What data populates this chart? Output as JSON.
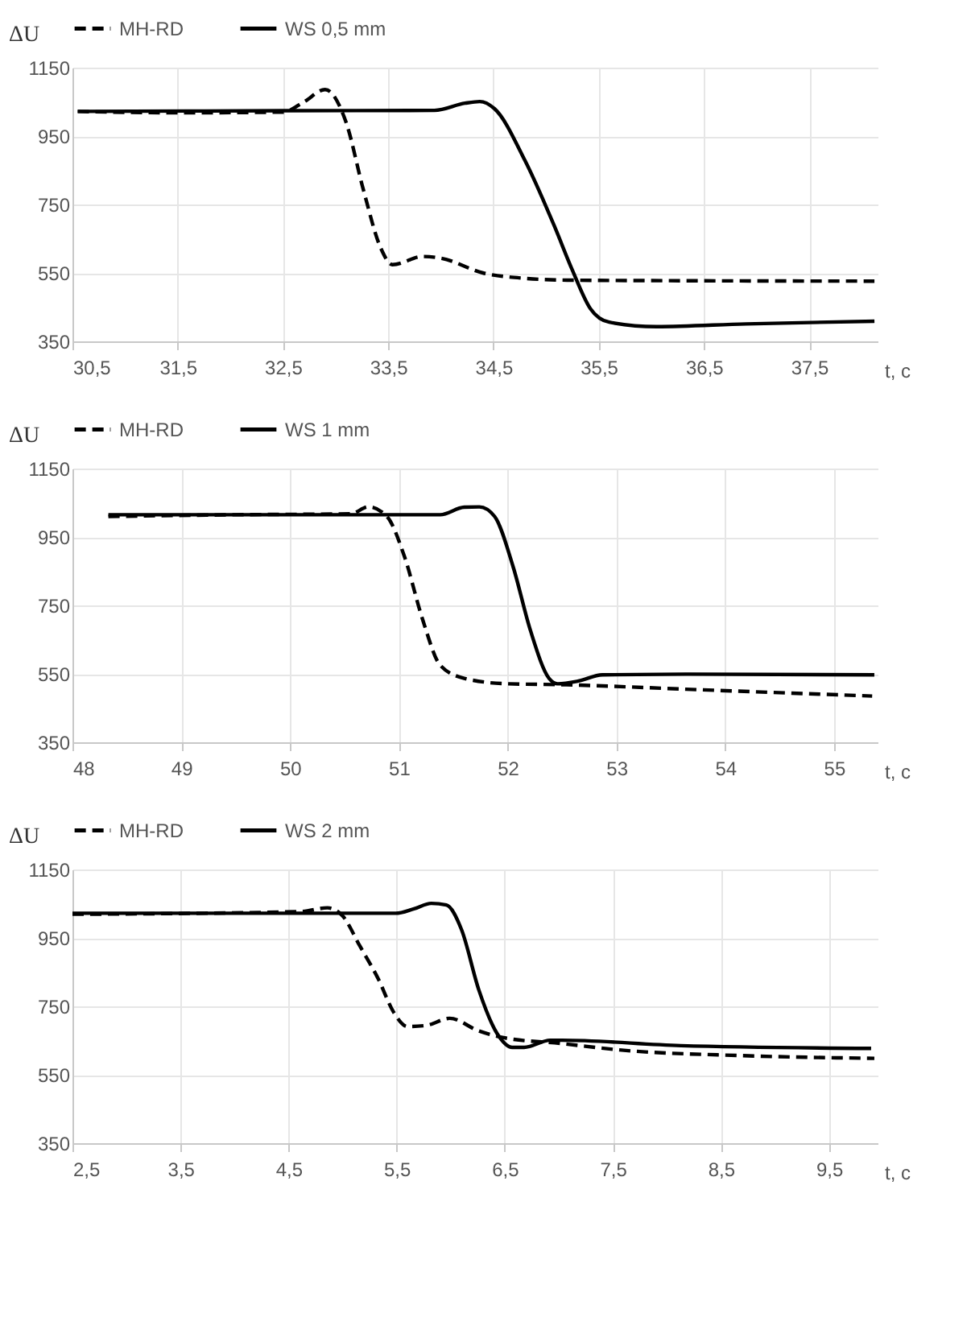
{
  "chart_data": [
    {
      "type": "line",
      "xlabel": "t, c",
      "ylabel": "ΔU",
      "xlim": [
        30.5,
        38.15
      ],
      "xticks": [
        {
          "value": 30.5,
          "label": "30,5"
        },
        {
          "value": 31.5,
          "label": "31,5"
        },
        {
          "value": 32.5,
          "label": "32,5"
        },
        {
          "value": 33.5,
          "label": "33,5"
        },
        {
          "value": 34.5,
          "label": "34,5"
        },
        {
          "value": 35.5,
          "label": "35,5"
        },
        {
          "value": 36.5,
          "label": "36,5"
        },
        {
          "value": 37.5,
          "label": "37,5"
        }
      ],
      "ylim": [
        350,
        1150
      ],
      "yticks": [
        350,
        550,
        750,
        950,
        1150
      ],
      "grid": true,
      "legend": "top",
      "marker": "none",
      "series": [
        {
          "name": "MH-RD",
          "color": "#000000",
          "line_style": "dashed",
          "x": [
            30.55,
            31.5,
            32.5,
            32.7,
            32.9,
            33.1,
            33.26,
            33.43,
            33.54,
            33.83,
            34.0,
            34.4,
            34.8,
            35.2,
            36.5,
            38.12
          ],
          "values": [
            1022,
            1018,
            1020,
            1050,
            1086,
            990,
            798,
            622,
            574,
            598,
            593,
            550,
            534,
            529,
            527,
            526
          ]
        },
        {
          "name": "WS 0,5 mm",
          "color": "#000000",
          "line_style": "solid",
          "x": [
            30.55,
            32.5,
            33.94,
            34.23,
            34.37,
            34.51,
            34.8,
            35.08,
            35.25,
            35.42,
            35.6,
            36.05,
            36.9,
            38.12
          ],
          "values": [
            1022,
            1024,
            1025,
            1046,
            1051,
            1030,
            878,
            686,
            558,
            446,
            406,
            393,
            401,
            409
          ]
        }
      ]
    },
    {
      "type": "line",
      "xlabel": "t, c",
      "ylabel": "ΔU",
      "xlim": [
        48,
        55.4
      ],
      "xticks": [
        48,
        49,
        50,
        51,
        52,
        53,
        54,
        55
      ],
      "ylim": [
        350,
        1150
      ],
      "yticks": [
        350,
        550,
        750,
        950,
        1150
      ],
      "grid": true,
      "legend": "top",
      "marker": "none",
      "series": [
        {
          "name": "MH-RD",
          "color": "#000000",
          "line_style": "dashed",
          "x": [
            48.33,
            49.5,
            50.56,
            50.72,
            50.89,
            51.05,
            51.22,
            51.38,
            51.6,
            51.99,
            52.54,
            53.64,
            55.35
          ],
          "values": [
            1010,
            1015,
            1018,
            1038,
            1010,
            894,
            707,
            575,
            537,
            521,
            518,
            505,
            485
          ]
        },
        {
          "name": "WS 1 mm",
          "color": "#000000",
          "line_style": "solid",
          "x": [
            48.33,
            51.38,
            51.6,
            51.74,
            51.88,
            52.05,
            52.21,
            52.38,
            52.46,
            52.65,
            52.87,
            53.64,
            55.37
          ],
          "values": [
            1015,
            1015,
            1037,
            1038,
            1010,
            863,
            676,
            537,
            521,
            529,
            547,
            549,
            547
          ]
        }
      ]
    },
    {
      "type": "line",
      "xlabel": "t, c",
      "ylabel": "ΔU",
      "xlim": [
        2.5,
        9.95
      ],
      "xticks": [
        {
          "value": 2.5,
          "label": "2,5"
        },
        {
          "value": 3.5,
          "label": "3,5"
        },
        {
          "value": 4.5,
          "label": "4,5"
        },
        {
          "value": 5.5,
          "label": "5,5"
        },
        {
          "value": 6.5,
          "label": "6,5"
        },
        {
          "value": 7.5,
          "label": "7,5"
        },
        {
          "value": 8.5,
          "label": "8,5"
        },
        {
          "value": 9.5,
          "label": "9,5"
        }
      ],
      "ylim": [
        350,
        1150
      ],
      "yticks": [
        350,
        550,
        750,
        950,
        1150
      ],
      "grid": true,
      "legend": "top",
      "marker": "none",
      "series": [
        {
          "name": "MH-RD",
          "color": "#000000",
          "line_style": "dashed",
          "x": [
            2.5,
            4.62,
            4.86,
            5.0,
            5.16,
            5.33,
            5.47,
            5.6,
            5.77,
            5.99,
            6.26,
            6.48,
            7.03,
            7.58,
            8.68,
            9.92
          ],
          "values": [
            1019,
            1027,
            1038,
            1014,
            926,
            830,
            734,
            691,
            694,
            715,
            678,
            659,
            641,
            622,
            606,
            598
          ]
        },
        {
          "name": "WS 2 mm",
          "color": "#000000",
          "line_style": "solid",
          "x": [
            2.5,
            5.49,
            5.66,
            5.82,
            5.96,
            6.1,
            6.26,
            6.43,
            6.57,
            6.68,
            6.92,
            7.03,
            8.13,
            9.89
          ],
          "values": [
            1022,
            1022,
            1035,
            1051,
            1046,
            974,
            798,
            670,
            630,
            630,
            651,
            651,
            635,
            627
          ]
        }
      ]
    }
  ]
}
